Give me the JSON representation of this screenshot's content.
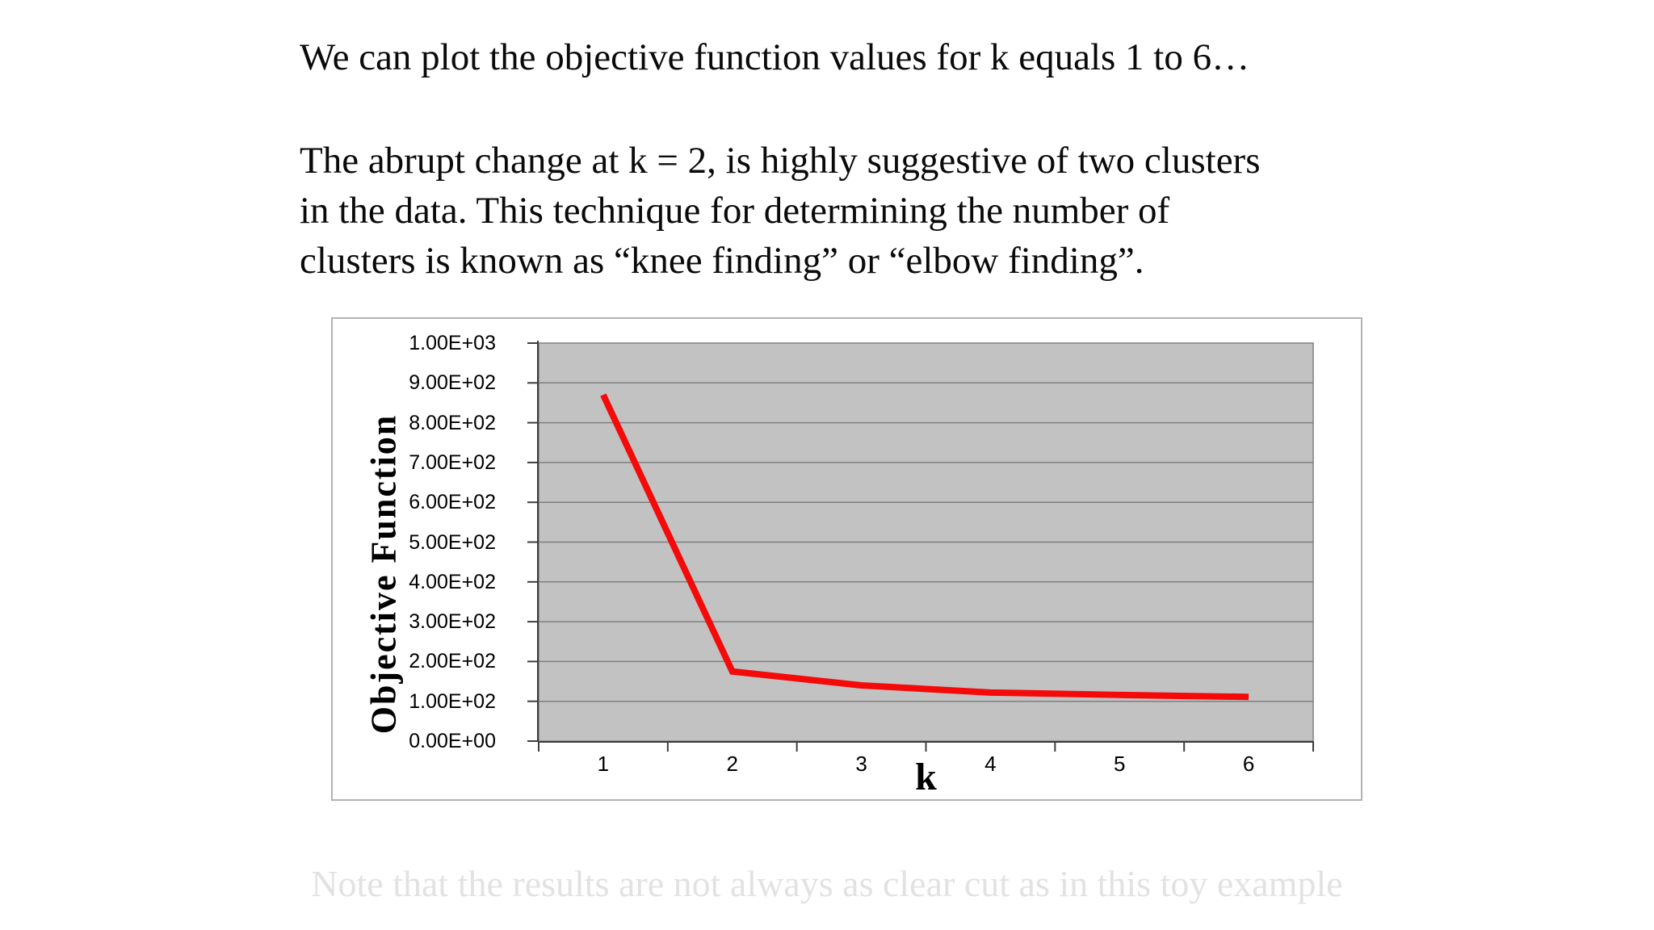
{
  "slide": {
    "title": "We can plot the objective function values for k equals 1 to 6…",
    "paragraph_lines": [
      "The abrupt change at k = 2, is highly suggestive of two clusters",
      "in the data. This technique for determining the number of",
      "clusters is known as “knee finding” or “elbow finding”."
    ],
    "footer_note": "Note that the results are not always as clear cut as in this toy example"
  },
  "chart_data": {
    "type": "line",
    "title": "",
    "xlabel": "k",
    "ylabel": "Objective Function",
    "x": [
      1,
      2,
      3,
      4,
      5,
      6
    ],
    "series": [
      {
        "name": "Objective Function",
        "values": [
          870,
          175,
          140,
          122,
          116,
          111
        ]
      }
    ],
    "ylim": [
      0,
      1000
    ],
    "y_tick_labels_top_to_bottom": [
      "1.00E+03",
      "9.00E+02",
      "8.00E+02",
      "7.00E+02",
      "6.00E+02",
      "5.00E+02",
      "4.00E+02",
      "3.00E+02",
      "2.00E+02",
      "1.00E+02",
      "0.00E+00"
    ],
    "x_tick_labels": [
      "1",
      "2",
      "3",
      "4",
      "5",
      "6"
    ],
    "grid": true,
    "legend_position": "none",
    "colors": {
      "line": "#f50a0a",
      "plot_background": "#c2c2c2",
      "gridline": "#7f7f7f",
      "axis": "#3d3d3d",
      "chart_border": "#b2b2b2"
    }
  }
}
